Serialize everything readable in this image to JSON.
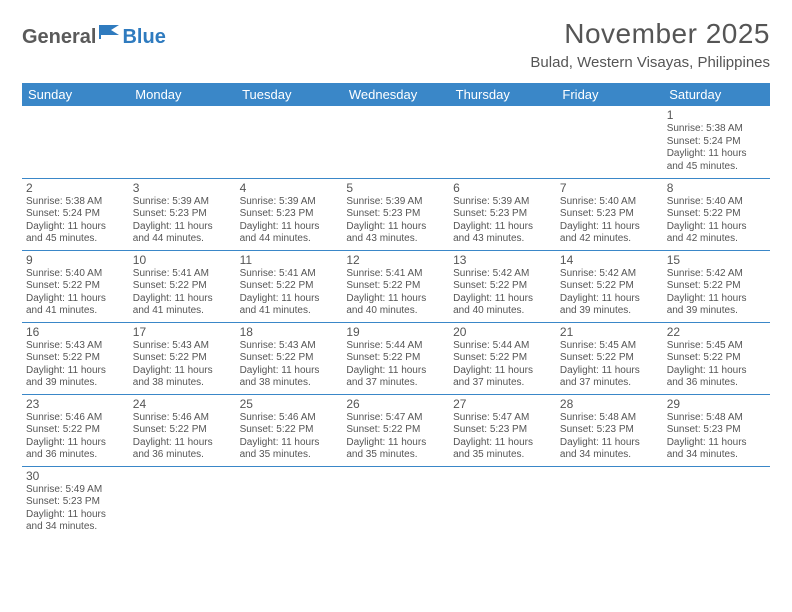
{
  "logo": {
    "part1": "General",
    "part2": "Blue"
  },
  "title": "November 2025",
  "subtitle": "Bulad, Western Visayas, Philippines",
  "colors": {
    "header_bg": "#3a87c8",
    "header_text": "#ffffff",
    "body_text": "#555555",
    "rule": "#3a87c8",
    "logo_gray": "#5a5a5a",
    "logo_blue": "#2f7bbf",
    "page_bg": "#ffffff"
  },
  "dayHeaders": [
    "Sunday",
    "Monday",
    "Tuesday",
    "Wednesday",
    "Thursday",
    "Friday",
    "Saturday"
  ],
  "weeks": [
    [
      null,
      null,
      null,
      null,
      null,
      null,
      {
        "n": "1",
        "sr": "5:38 AM",
        "ss": "5:24 PM",
        "dl": "11 hours and 45 minutes."
      }
    ],
    [
      {
        "n": "2",
        "sr": "5:38 AM",
        "ss": "5:24 PM",
        "dl": "11 hours and 45 minutes."
      },
      {
        "n": "3",
        "sr": "5:39 AM",
        "ss": "5:23 PM",
        "dl": "11 hours and 44 minutes."
      },
      {
        "n": "4",
        "sr": "5:39 AM",
        "ss": "5:23 PM",
        "dl": "11 hours and 44 minutes."
      },
      {
        "n": "5",
        "sr": "5:39 AM",
        "ss": "5:23 PM",
        "dl": "11 hours and 43 minutes."
      },
      {
        "n": "6",
        "sr": "5:39 AM",
        "ss": "5:23 PM",
        "dl": "11 hours and 43 minutes."
      },
      {
        "n": "7",
        "sr": "5:40 AM",
        "ss": "5:23 PM",
        "dl": "11 hours and 42 minutes."
      },
      {
        "n": "8",
        "sr": "5:40 AM",
        "ss": "5:22 PM",
        "dl": "11 hours and 42 minutes."
      }
    ],
    [
      {
        "n": "9",
        "sr": "5:40 AM",
        "ss": "5:22 PM",
        "dl": "11 hours and 41 minutes."
      },
      {
        "n": "10",
        "sr": "5:41 AM",
        "ss": "5:22 PM",
        "dl": "11 hours and 41 minutes."
      },
      {
        "n": "11",
        "sr": "5:41 AM",
        "ss": "5:22 PM",
        "dl": "11 hours and 41 minutes."
      },
      {
        "n": "12",
        "sr": "5:41 AM",
        "ss": "5:22 PM",
        "dl": "11 hours and 40 minutes."
      },
      {
        "n": "13",
        "sr": "5:42 AM",
        "ss": "5:22 PM",
        "dl": "11 hours and 40 minutes."
      },
      {
        "n": "14",
        "sr": "5:42 AM",
        "ss": "5:22 PM",
        "dl": "11 hours and 39 minutes."
      },
      {
        "n": "15",
        "sr": "5:42 AM",
        "ss": "5:22 PM",
        "dl": "11 hours and 39 minutes."
      }
    ],
    [
      {
        "n": "16",
        "sr": "5:43 AM",
        "ss": "5:22 PM",
        "dl": "11 hours and 39 minutes."
      },
      {
        "n": "17",
        "sr": "5:43 AM",
        "ss": "5:22 PM",
        "dl": "11 hours and 38 minutes."
      },
      {
        "n": "18",
        "sr": "5:43 AM",
        "ss": "5:22 PM",
        "dl": "11 hours and 38 minutes."
      },
      {
        "n": "19",
        "sr": "5:44 AM",
        "ss": "5:22 PM",
        "dl": "11 hours and 37 minutes."
      },
      {
        "n": "20",
        "sr": "5:44 AM",
        "ss": "5:22 PM",
        "dl": "11 hours and 37 minutes."
      },
      {
        "n": "21",
        "sr": "5:45 AM",
        "ss": "5:22 PM",
        "dl": "11 hours and 37 minutes."
      },
      {
        "n": "22",
        "sr": "5:45 AM",
        "ss": "5:22 PM",
        "dl": "11 hours and 36 minutes."
      }
    ],
    [
      {
        "n": "23",
        "sr": "5:46 AM",
        "ss": "5:22 PM",
        "dl": "11 hours and 36 minutes."
      },
      {
        "n": "24",
        "sr": "5:46 AM",
        "ss": "5:22 PM",
        "dl": "11 hours and 36 minutes."
      },
      {
        "n": "25",
        "sr": "5:46 AM",
        "ss": "5:22 PM",
        "dl": "11 hours and 35 minutes."
      },
      {
        "n": "26",
        "sr": "5:47 AM",
        "ss": "5:22 PM",
        "dl": "11 hours and 35 minutes."
      },
      {
        "n": "27",
        "sr": "5:47 AM",
        "ss": "5:23 PM",
        "dl": "11 hours and 35 minutes."
      },
      {
        "n": "28",
        "sr": "5:48 AM",
        "ss": "5:23 PM",
        "dl": "11 hours and 34 minutes."
      },
      {
        "n": "29",
        "sr": "5:48 AM",
        "ss": "5:23 PM",
        "dl": "11 hours and 34 minutes."
      }
    ],
    [
      {
        "n": "30",
        "sr": "5:49 AM",
        "ss": "5:23 PM",
        "dl": "11 hours and 34 minutes."
      },
      null,
      null,
      null,
      null,
      null,
      null
    ]
  ],
  "labels": {
    "sunrise": "Sunrise:",
    "sunset": "Sunset:",
    "daylight": "Daylight:"
  },
  "layout": {
    "font_size_cell": 10,
    "font_size_daynum": 12,
    "font_size_header": 13
  }
}
